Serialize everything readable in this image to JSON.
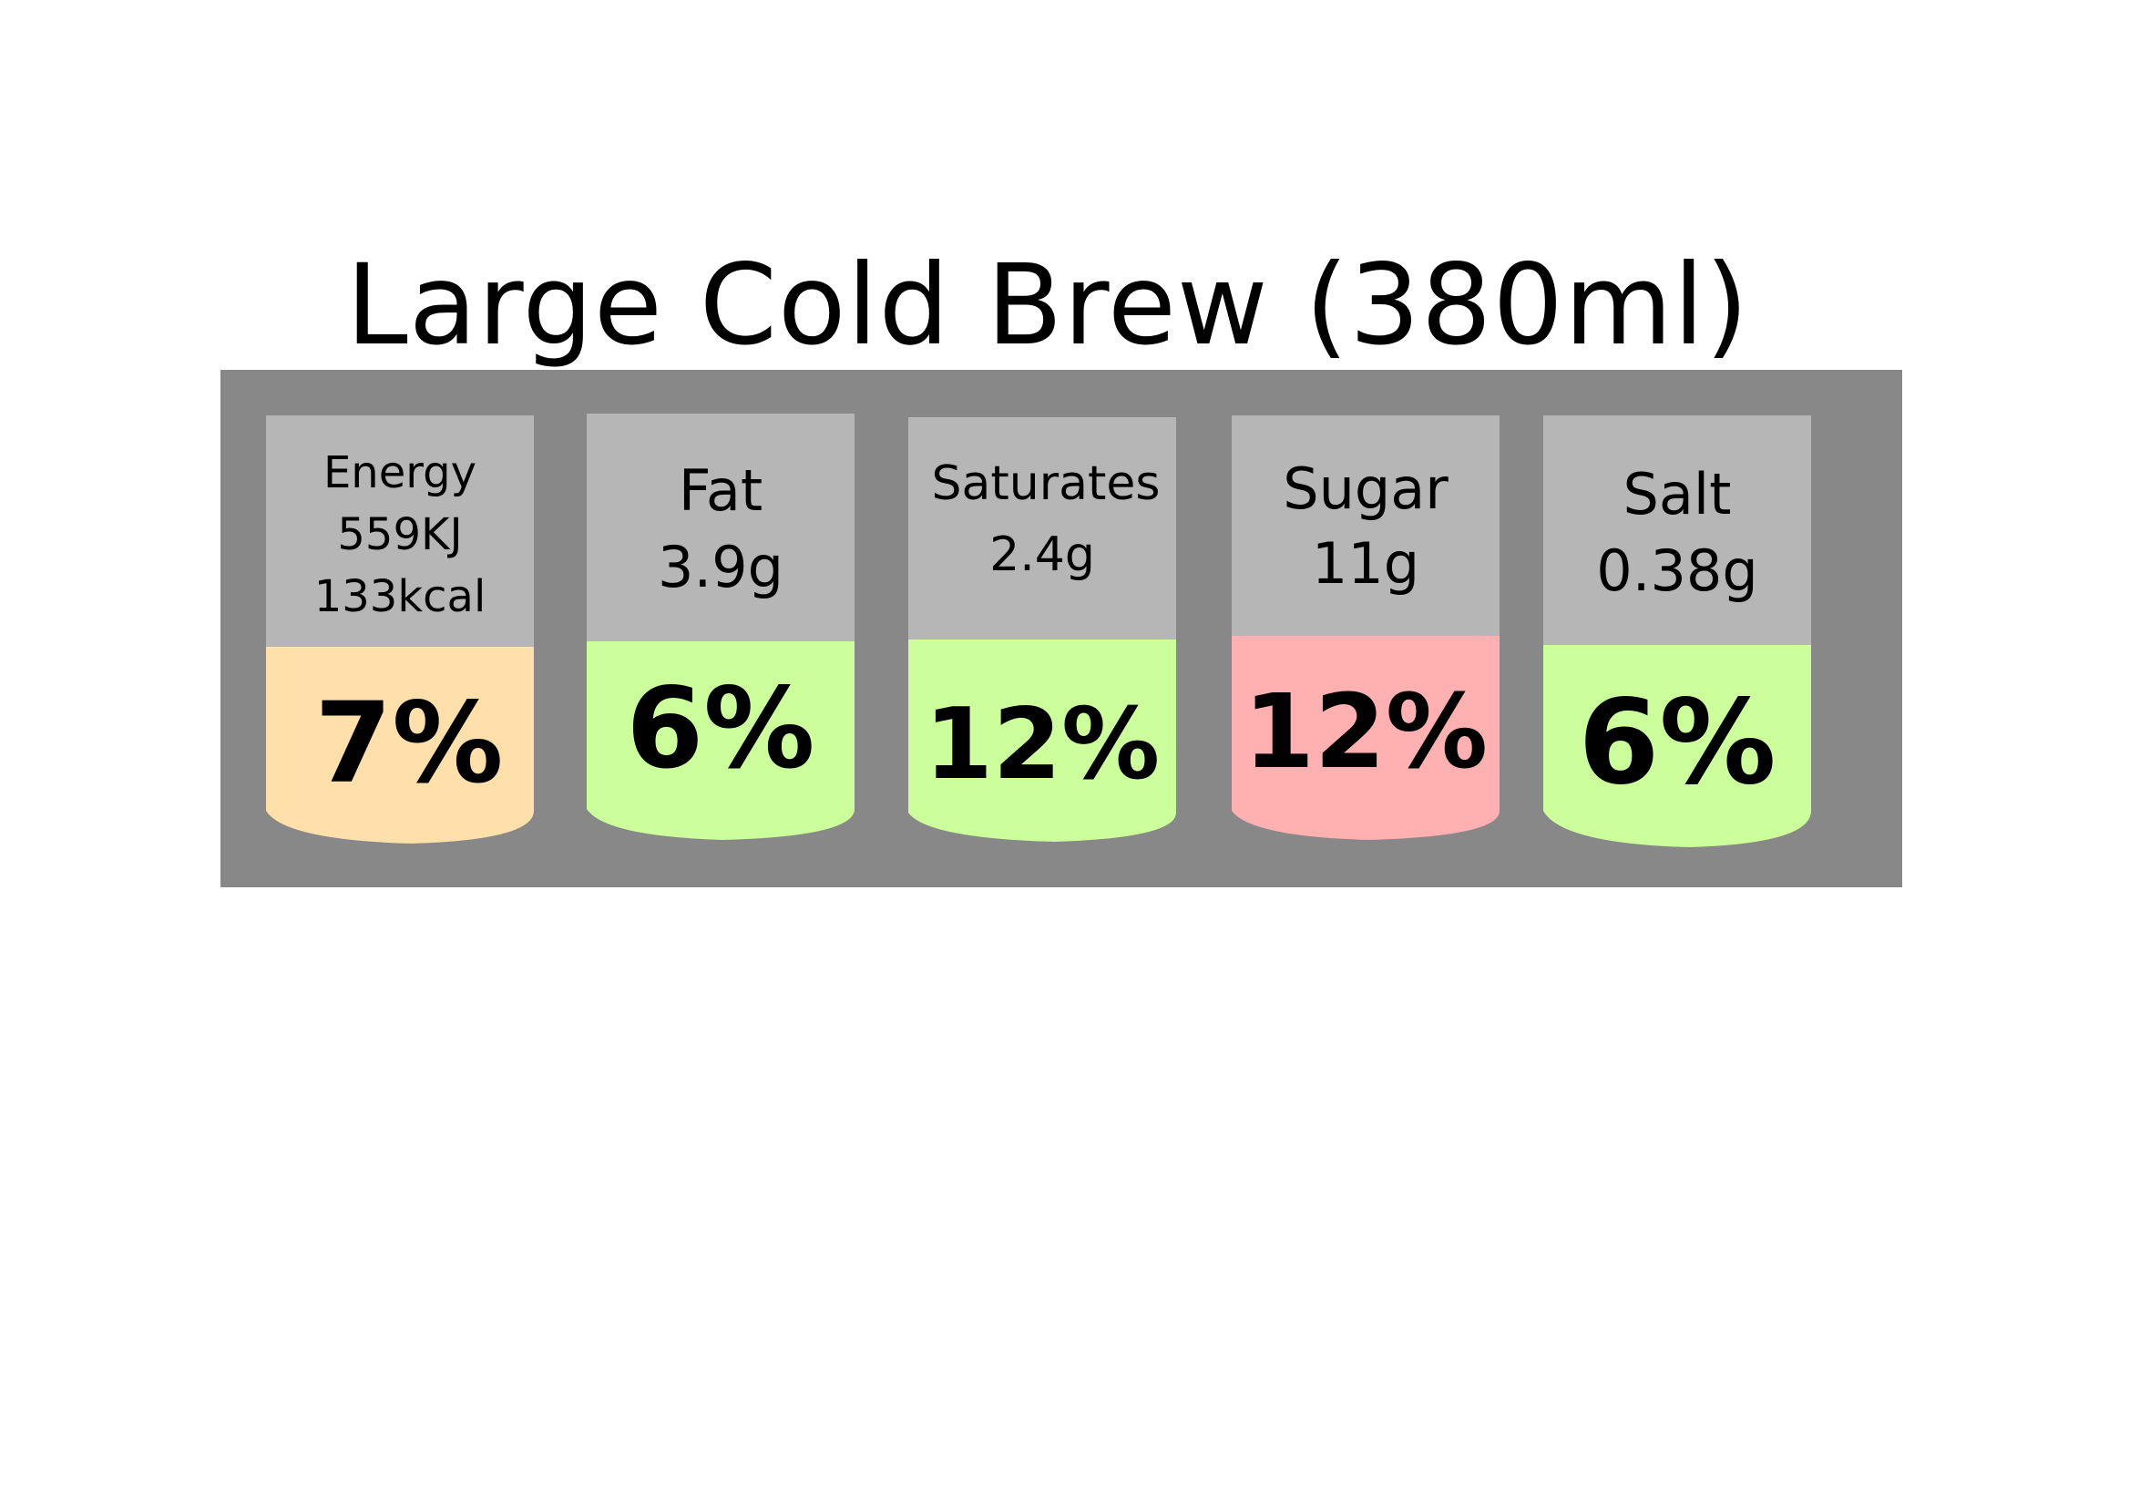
{
  "title": "Large Cold Brew (380ml)",
  "colors": {
    "panel": "#888888",
    "header": "#b6b6b6",
    "amber": "#ffe0aa",
    "green": "#ccff9c",
    "red": "#ffb0b0",
    "text": "#000000"
  },
  "nutrients": [
    {
      "name": "Energy",
      "amount": "559KJ",
      "amount2": "133kcal",
      "percent": "7%",
      "color": "amber"
    },
    {
      "name": "Fat",
      "amount": "3.9g",
      "percent": "6%",
      "color": "green"
    },
    {
      "name": "Saturates",
      "amount": "2.4g",
      "percent": "12%",
      "color": "green"
    },
    {
      "name": "Sugar",
      "amount": "11g",
      "percent": "12%",
      "color": "red"
    },
    {
      "name": "Salt",
      "amount": "0.38g",
      "percent": "6%",
      "color": "green"
    }
  ]
}
